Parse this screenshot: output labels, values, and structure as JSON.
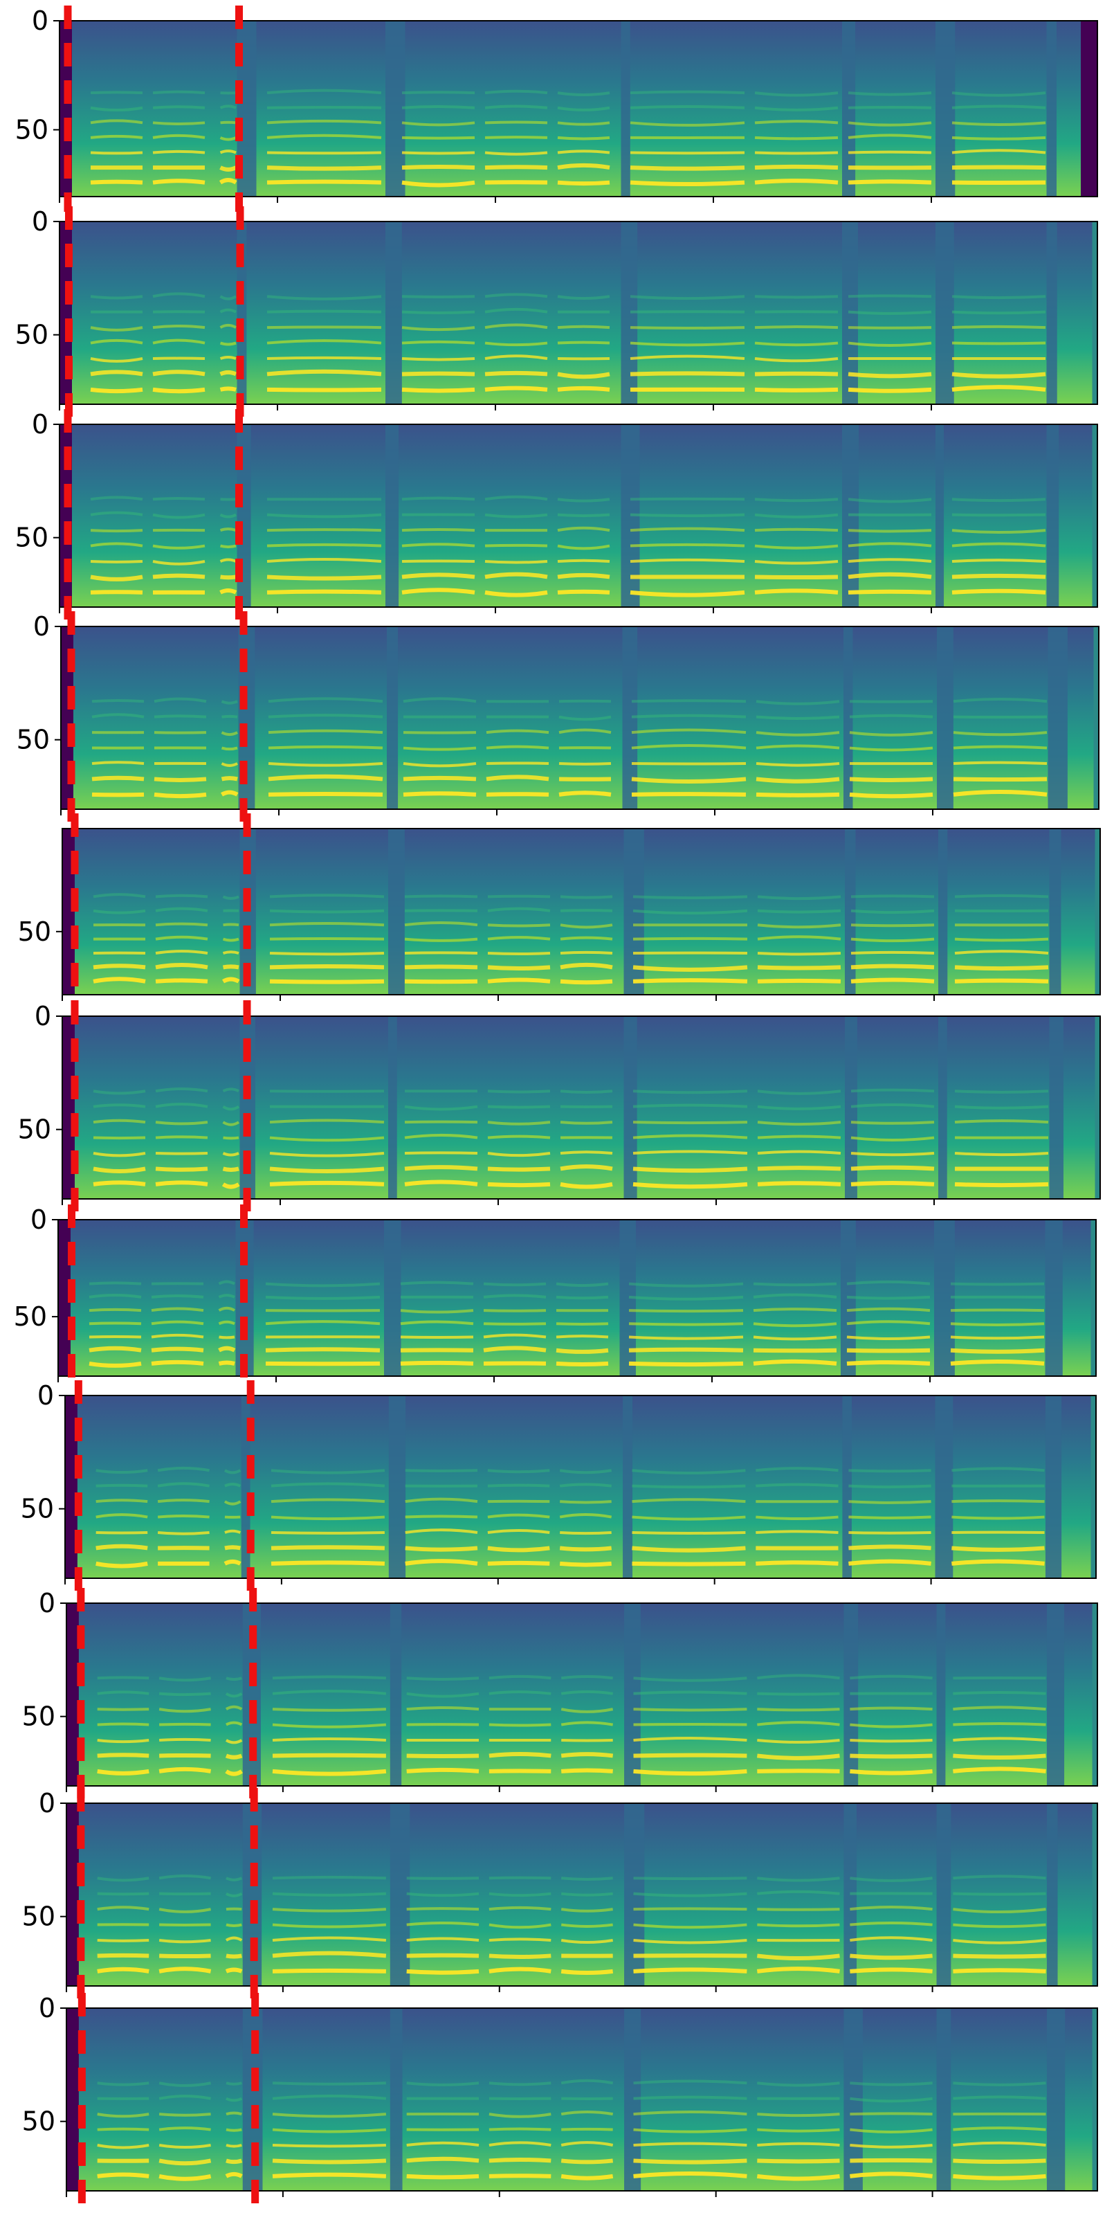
{
  "chart_data": {
    "type": "heatmap",
    "description_kind": "stack of mel-spectrogram panels",
    "panel_count": 11,
    "colormap": "viridis",
    "y_axis": {
      "inverted": true,
      "range": [
        0,
        80
      ],
      "grid": false
    },
    "x_axis": {
      "tick_labels_shown": false,
      "grid": false
    },
    "marker_style": {
      "color": "#ee1111",
      "dash": "dashed"
    },
    "panels": [
      {
        "y_ticks": [
          "0",
          "50"
        ],
        "markers_x": [
          0.008,
          0.173
        ],
        "content_end": 0.984
      },
      {
        "y_ticks": [
          "0",
          "50"
        ],
        "markers_x": [
          0.009,
          0.174
        ],
        "content_end": 0.995
      },
      {
        "y_ticks": [
          "0",
          "50"
        ],
        "markers_x": [
          0.008,
          0.173
        ],
        "content_end": 0.995
      },
      {
        "y_ticks": [
          "0",
          "50"
        ],
        "markers_x": [
          0.01,
          0.176
        ],
        "content_end": 0.995
      },
      {
        "y_ticks": [
          "50"
        ],
        "markers_x": [
          0.012,
          0.178
        ],
        "content_end": 0.995
      },
      {
        "y_ticks": [
          "0",
          "50"
        ],
        "markers_x": [
          0.012,
          0.178
        ],
        "content_end": 0.995
      },
      {
        "y_ticks": [
          "0",
          "50"
        ],
        "markers_x": [
          0.013,
          0.179
        ],
        "content_end": 0.995
      },
      {
        "y_ticks": [
          "0",
          "50"
        ],
        "markers_x": [
          0.013,
          0.18
        ],
        "content_end": 0.995
      },
      {
        "y_ticks": [
          "0",
          "50"
        ],
        "markers_x": [
          0.014,
          0.181
        ],
        "content_end": 0.995
      },
      {
        "y_ticks": [
          "0",
          "50"
        ],
        "markers_x": [
          0.014,
          0.182
        ],
        "content_end": 0.995
      },
      {
        "y_ticks": [
          "0",
          "50"
        ],
        "markers_x": [
          0.015,
          0.183
        ],
        "content_end": 0.995
      }
    ],
    "colors": {
      "dark": "#440154",
      "mid": "#31688e",
      "teal": "#35b779",
      "yellow": "#fde725",
      "marker": "#ee1111"
    }
  }
}
